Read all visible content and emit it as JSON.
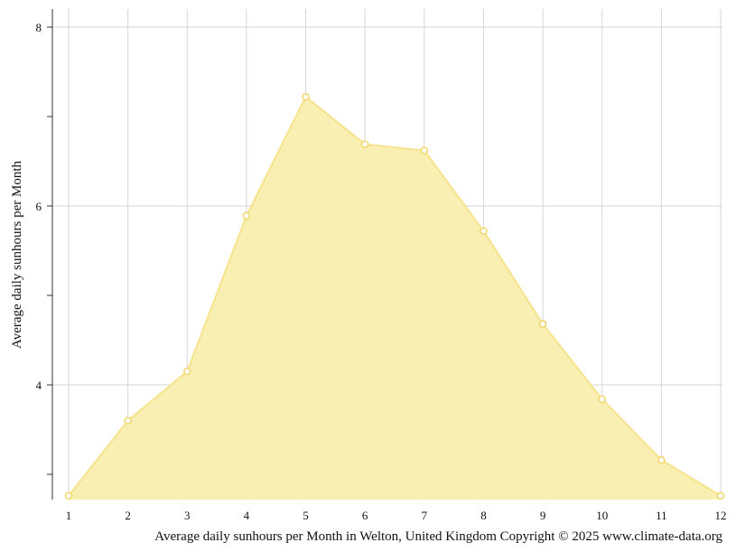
{
  "chart_data": {
    "type": "area",
    "title": "",
    "caption": "Average daily sunhours per Month in Welton, United Kingdom Copyright © 2025 www.climate-data.org",
    "xlabel": "",
    "ylabel": "Average daily sunhours per Month",
    "x": [
      1,
      2,
      3,
      4,
      5,
      6,
      7,
      8,
      9,
      10,
      11,
      12
    ],
    "x_tick_labels": [
      "1",
      "2",
      "3",
      "4",
      "5",
      "6",
      "7",
      "8",
      "9",
      "10",
      "11",
      "12"
    ],
    "y_tick_labels": [
      "4",
      "6",
      "8"
    ],
    "y_ticks_major": [
      4,
      6,
      8
    ],
    "y_ticks_minor": [
      3,
      5,
      7
    ],
    "xlim": [
      1,
      12
    ],
    "ylim": [
      2.75,
      8.2
    ],
    "grid": true,
    "series": [
      {
        "values": [
          2.76,
          3.6,
          4.15,
          5.89,
          7.22,
          6.69,
          6.62,
          5.72,
          4.68,
          3.84,
          3.16,
          2.76
        ]
      }
    ],
    "colors": {
      "fill": "#f9eeae",
      "line": "#f7e38d",
      "marker_fill": "#ffffff",
      "marker_stroke": "#f1d66a",
      "grid": "#d6d6d6",
      "axis": "#333333",
      "text": "#111111"
    }
  }
}
